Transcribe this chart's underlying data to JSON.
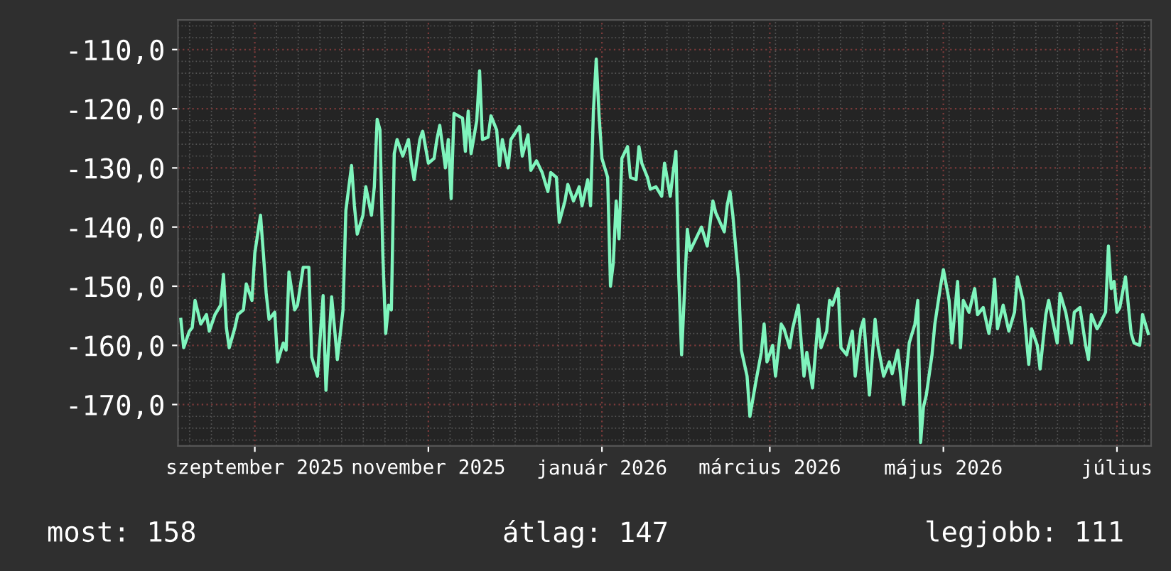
{
  "chart_data": {
    "type": "line",
    "x": [
      "2025-08-06",
      "2025-08-07",
      "2025-08-09",
      "2025-08-10",
      "2025-08-11",
      "2025-08-13",
      "2025-08-15",
      "2025-08-16",
      "2025-08-18",
      "2025-08-20",
      "2025-08-21",
      "2025-08-22",
      "2025-08-23",
      "2025-08-25",
      "2025-08-26",
      "2025-08-28",
      "2025-08-29",
      "2025-08-31",
      "2025-09-01",
      "2025-09-03",
      "2025-09-04",
      "2025-09-05",
      "2025-09-06",
      "2025-09-08",
      "2025-09-09",
      "2025-09-11",
      "2025-09-12",
      "2025-09-13",
      "2025-09-15",
      "2025-09-16",
      "2025-09-18",
      "2025-09-20",
      "2025-09-21",
      "2025-09-23",
      "2025-09-25",
      "2025-09-26",
      "2025-09-28",
      "2025-09-29",
      "2025-09-30",
      "2025-10-02",
      "2025-10-03",
      "2025-10-05",
      "2025-10-06",
      "2025-10-07",
      "2025-10-09",
      "2025-10-10",
      "2025-10-12",
      "2025-10-13",
      "2025-10-14",
      "2025-10-15",
      "2025-10-16",
      "2025-10-17",
      "2025-10-18",
      "2025-10-19",
      "2025-10-20",
      "2025-10-21",
      "2025-10-23",
      "2025-10-25",
      "2025-10-26",
      "2025-10-27",
      "2025-10-29",
      "2025-10-30",
      "2025-11-01",
      "2025-11-03",
      "2025-11-04",
      "2025-11-05",
      "2025-11-07",
      "2025-11-08",
      "2025-11-09",
      "2025-11-10",
      "2025-11-13",
      "2025-11-14",
      "2025-11-15",
      "2025-11-16",
      "2025-11-18",
      "2025-11-19",
      "2025-11-20",
      "2025-11-22",
      "2025-11-23",
      "2025-11-25",
      "2025-11-26",
      "2025-11-27",
      "2025-11-29",
      "2025-11-30",
      "2025-12-03",
      "2025-12-04",
      "2025-12-06",
      "2025-12-07",
      "2025-12-09",
      "2025-12-11",
      "2025-12-13",
      "2025-12-14",
      "2025-12-16",
      "2025-12-17",
      "2025-12-19",
      "2025-12-20",
      "2025-12-22",
      "2025-12-24",
      "2025-12-25",
      "2025-12-27",
      "2025-12-28",
      "2025-12-29",
      "2025-12-30",
      "2025-12-31",
      "2026-01-01",
      "2026-01-03",
      "2026-01-04",
      "2026-01-05",
      "2026-01-06",
      "2026-01-07",
      "2026-01-08",
      "2026-01-10",
      "2026-01-11",
      "2026-01-13",
      "2026-01-14",
      "2026-01-15",
      "2026-01-17",
      "2026-01-18",
      "2026-01-20",
      "2026-01-22",
      "2026-01-23",
      "2026-01-25",
      "2026-01-26",
      "2026-01-27",
      "2026-01-28",
      "2026-01-29",
      "2026-01-31",
      "2026-02-01",
      "2026-02-03",
      "2026-02-05",
      "2026-02-07",
      "2026-02-09",
      "2026-02-10",
      "2026-02-13",
      "2026-02-14",
      "2026-02-15",
      "2026-02-16",
      "2026-02-18",
      "2026-02-19",
      "2026-02-21",
      "2026-02-22",
      "2026-02-24",
      "2026-02-26",
      "2026-02-27",
      "2026-02-28",
      "2026-03-02",
      "2026-03-03",
      "2026-03-05",
      "2026-03-06",
      "2026-03-08",
      "2026-03-09",
      "2026-03-11",
      "2026-03-13",
      "2026-03-14",
      "2026-03-16",
      "2026-03-18",
      "2026-03-19",
      "2026-03-21",
      "2026-03-22",
      "2026-03-23",
      "2026-03-25",
      "2026-03-26",
      "2026-03-28",
      "2026-03-30",
      "2026-03-31",
      "2026-04-02",
      "2026-04-03",
      "2026-04-04",
      "2026-04-05",
      "2026-04-07",
      "2026-04-08",
      "2026-04-10",
      "2026-04-12",
      "2026-04-13",
      "2026-04-15",
      "2026-04-16",
      "2026-04-17",
      "2026-04-19",
      "2026-04-21",
      "2026-04-22",
      "2026-04-23",
      "2026-04-24",
      "2026-04-25",
      "2026-04-27",
      "2026-04-28",
      "2026-04-30",
      "2026-05-01",
      "2026-05-03",
      "2026-05-04",
      "2026-05-06",
      "2026-05-07",
      "2026-05-08",
      "2026-05-10",
      "2026-05-12",
      "2026-05-13",
      "2026-05-15",
      "2026-05-17",
      "2026-05-18",
      "2026-05-19",
      "2026-05-20",
      "2026-05-22",
      "2026-05-24",
      "2026-05-26",
      "2026-05-27",
      "2026-05-29",
      "2026-05-31",
      "2026-06-01",
      "2026-06-03",
      "2026-06-04",
      "2026-06-06",
      "2026-06-07",
      "2026-06-09",
      "2026-06-10",
      "2026-06-11",
      "2026-06-13",
      "2026-06-15",
      "2026-06-16",
      "2026-06-18",
      "2026-06-20",
      "2026-06-21",
      "2026-06-22",
      "2026-06-24",
      "2026-06-25",
      "2026-06-27",
      "2026-06-28",
      "2026-06-29",
      "2026-06-30",
      "2026-07-01",
      "2026-07-02",
      "2026-07-04",
      "2026-07-06",
      "2026-07-07",
      "2026-07-09",
      "2026-07-10",
      "2026-07-12"
    ],
    "series": [
      {
        "color": "#7ff5bd",
        "values": [
          -155.6,
          -160.4,
          -157.6,
          -157,
          -152.4,
          -156.4,
          -154.8,
          -157.6,
          -154.8,
          -153.2,
          -148,
          -157,
          -160.4,
          -157,
          -154.8,
          -154,
          -149.6,
          -152.4,
          -144.4,
          -138,
          -144.4,
          -151.2,
          -155.6,
          -154.4,
          -162.8,
          -159.6,
          -160.8,
          -147.6,
          -154,
          -153.2,
          -146.8,
          -146.8,
          -162,
          -165.2,
          -151.6,
          -167.6,
          -151.8,
          -157,
          -162.4,
          -154,
          -137.2,
          -129.6,
          -136.4,
          -141.2,
          -138,
          -133.2,
          -138,
          -133.2,
          -121.8,
          -123.6,
          -144.8,
          -158,
          -153.2,
          -154,
          -127.6,
          -125.2,
          -128,
          -125.2,
          -129.2,
          -132,
          -125.2,
          -123.8,
          -129.2,
          -128.4,
          -125.2,
          -122.8,
          -130,
          -125.2,
          -135.2,
          -120.8,
          -121.6,
          -127.2,
          -120.4,
          -127.6,
          -122,
          -113.6,
          -125.2,
          -124.8,
          -121.2,
          -123.6,
          -129.6,
          -125.2,
          -130,
          -125.2,
          -123,
          -128,
          -124.4,
          -130.4,
          -128.8,
          -130.8,
          -134,
          -130.8,
          -131.6,
          -139.2,
          -135.6,
          -132.8,
          -135.6,
          -133.2,
          -136.4,
          -132,
          -136.4,
          -120.4,
          -111.6,
          -121.2,
          -128.4,
          -131.6,
          -150,
          -146,
          -135.6,
          -142,
          -128.4,
          -126.4,
          -131.6,
          -132,
          -126.4,
          -129.2,
          -131.6,
          -133.6,
          -133.2,
          -134.8,
          -129.2,
          -134.8,
          -130.8,
          -127.2,
          -148.4,
          -161.6,
          -140.4,
          -144,
          -142,
          -140,
          -143.2,
          -135.6,
          -137.6,
          -140.8,
          -136.4,
          -134,
          -138,
          -148.8,
          -160.8,
          -165.2,
          -172,
          -166.4,
          -161.2,
          -156.4,
          -162.8,
          -160,
          -165.2,
          -156.4,
          -157.2,
          -160.4,
          -157.2,
          -153.2,
          -165.2,
          -161.2,
          -167.2,
          -155.6,
          -160.4,
          -157.6,
          -152.4,
          -153.2,
          -150.4,
          -160.4,
          -161.6,
          -157.6,
          -165.2,
          -157.2,
          -155.6,
          -162,
          -168.4,
          -155.6,
          -160,
          -165.2,
          -162.8,
          -164.8,
          -160.8,
          -165.2,
          -170,
          -159.6,
          -156.4,
          -152.4,
          -176.4,
          -170.4,
          -168.4,
          -161.6,
          -156.4,
          -150,
          -147.2,
          -152.4,
          -159.6,
          -149.2,
          -160.4,
          -152.4,
          -154.4,
          -150.4,
          -154.8,
          -153.6,
          -158,
          -154.8,
          -148.8,
          -157.2,
          -153.2,
          -157.6,
          -154.4,
          -148.4,
          -152.4,
          -163.2,
          -157.2,
          -160,
          -164,
          -154.8,
          -152.4,
          -157.2,
          -159.6,
          -151.2,
          -154.4,
          -159.6,
          -154.4,
          -153.6,
          -160,
          -162.4,
          -154.8,
          -157.2,
          -156.4,
          -154.4,
          -143.2,
          -150.4,
          -149.2,
          -154.4,
          -153.6,
          -148.4,
          -158,
          -159.6,
          -160,
          -154.8,
          -158
        ]
      }
    ],
    "xlim": [
      "2025-08-05",
      "2026-07-13"
    ],
    "xticks": [
      {
        "value": "2025-09-01",
        "label": "szeptember 2025"
      },
      {
        "value": "2025-11-01",
        "label": "november 2025"
      },
      {
        "value": "2026-01-01",
        "label": "január 2026"
      },
      {
        "value": "2026-03-01",
        "label": "március 2026"
      },
      {
        "value": "2026-05-01",
        "label": "május 2026"
      },
      {
        "value": "2026-07-01",
        "label": "július"
      }
    ],
    "ylim": [
      -177,
      -105
    ],
    "yticks": [
      {
        "value": -170,
        "label": "-170,0"
      },
      {
        "value": -160,
        "label": "-160,0"
      },
      {
        "value": -150,
        "label": "-150,0"
      },
      {
        "value": -140,
        "label": "-140,0"
      },
      {
        "value": -130,
        "label": "-130,0"
      },
      {
        "value": -120,
        "label": "-120,0"
      },
      {
        "value": -110,
        "label": "-110,0"
      }
    ],
    "grid": true,
    "line_style": "solid",
    "annotations": [
      "most: 158",
      "átlag: 147",
      "legjobb: 111"
    ]
  }
}
